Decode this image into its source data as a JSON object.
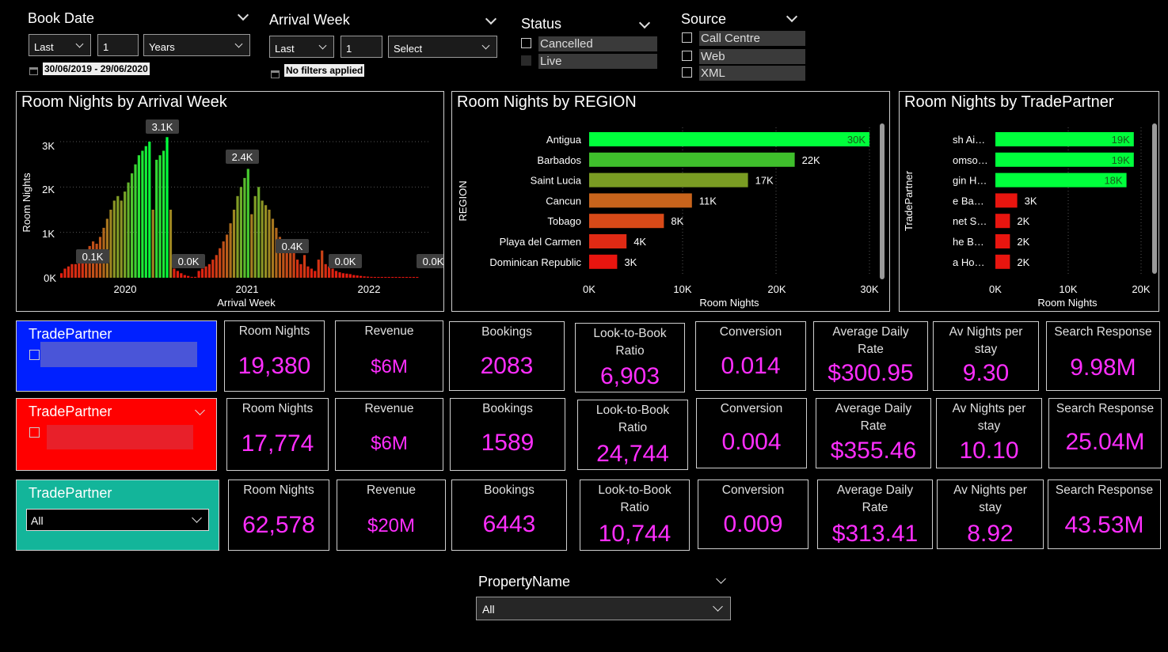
{
  "filters": {
    "book_date": {
      "title": "Book Date",
      "mode": "Last",
      "count": "1",
      "unit": "Years",
      "range": "30/06/2019 - 29/06/2020"
    },
    "arrival_week": {
      "title": "Arrival Week",
      "mode": "Last",
      "count": "1",
      "unit": "Select",
      "range": "No filters applied"
    },
    "status": {
      "title": "Status",
      "options": [
        "Cancelled",
        "Live"
      ]
    },
    "source": {
      "title": "Source",
      "options": [
        "Call Centre",
        "Web",
        "XML"
      ]
    },
    "property": {
      "title": "PropertyName",
      "value": "All"
    }
  },
  "charts": {
    "arrival": {
      "title": "Room Nights by Arrival Week",
      "xlabel": "Arrival Week",
      "ylabel": "Room Nights",
      "yticks": [
        "0K",
        "1K",
        "2K",
        "3K"
      ],
      "xticks": [
        "2020",
        "2021",
        "2022"
      ],
      "labels": [
        "3.1K",
        "2.4K",
        "0.1K",
        "0.0K",
        "0.4K",
        "0.0K",
        "0.0K"
      ]
    },
    "region": {
      "title": "Room Nights by REGION",
      "xlabel": "Room Nights",
      "ylabel": "REGION",
      "xticks": [
        "0K",
        "10K",
        "20K",
        "30K"
      ]
    },
    "tradepartner": {
      "title": "Room Nights by TradePartner",
      "xlabel": "Room Nights",
      "ylabel": "TradePartner",
      "xticks": [
        "0K",
        "10K",
        "20K"
      ]
    }
  },
  "chart_data": [
    {
      "type": "bar",
      "title": "Room Nights by Arrival Week",
      "xlabel": "Arrival Week",
      "ylabel": "Room Nights",
      "ylim": [
        0,
        3200
      ],
      "x_range": [
        "2019-07",
        "2022-09"
      ],
      "series": [
        {
          "name": "Room Nights",
          "values": [
            100,
            200,
            250,
            300,
            300,
            350,
            400,
            600,
            700,
            800,
            750,
            900,
            1100,
            1300,
            1500,
            1700,
            1800,
            1700,
            1900,
            2100,
            2300,
            2500,
            2700,
            2800,
            2900,
            3000,
            1500,
            2600,
            2700,
            2800,
            3100,
            1500,
            200,
            150,
            100,
            60,
            40,
            20,
            20,
            150,
            200,
            250,
            300,
            400,
            500,
            650,
            800,
            950,
            1200,
            1500,
            1800,
            2000,
            2200,
            2400,
            1400,
            1800,
            2000,
            1700,
            1600,
            1500,
            1300,
            1100,
            900,
            850,
            700,
            750,
            600,
            400,
            300,
            500,
            250,
            200,
            150,
            400,
            600,
            300,
            250,
            200,
            150,
            120,
            100,
            90,
            80,
            60,
            50,
            40,
            30,
            25,
            20,
            15,
            10,
            8,
            6,
            5,
            4,
            3,
            2,
            2,
            1,
            1,
            1,
            1,
            0,
            0,
            0
          ]
        }
      ],
      "data_labels": [
        "3.1K",
        "2.4K",
        "0.1K",
        "0.0K",
        "0.4K",
        "0.0K",
        "0.0K"
      ]
    },
    {
      "type": "bar",
      "title": "Room Nights by REGION",
      "xlabel": "Room Nights",
      "ylabel": "REGION",
      "xlim": [
        0,
        30000
      ],
      "categories": [
        "Antigua",
        "Barbados",
        "Saint Lucia",
        "Cancun",
        "Tobago",
        "Playa del Carmen",
        "Dominican Republic"
      ],
      "values": [
        30000,
        22000,
        17000,
        11000,
        8000,
        4000,
        3000
      ],
      "value_labels": [
        "30K",
        "22K",
        "17K",
        "11K",
        "8K",
        "4K",
        "3K"
      ],
      "colors": [
        "#00ff3c",
        "#3fbf2c",
        "#7a9c23",
        "#c8641c",
        "#d84a18",
        "#e02a14",
        "#e8150f"
      ]
    },
    {
      "type": "bar",
      "title": "Room Nights by TradePartner",
      "xlabel": "Room Nights",
      "ylabel": "TradePartner",
      "xlim": [
        0,
        20000
      ],
      "categories": [
        "sh Ai…",
        "omso…",
        "gin H…",
        "e Ba…",
        "net S…",
        "he B…",
        "a Ho…"
      ],
      "values": [
        19000,
        19000,
        18000,
        3000,
        2000,
        2000,
        2000
      ],
      "value_labels": [
        "19K",
        "19K",
        "18K",
        "3K",
        "2K",
        "2K",
        "2K"
      ],
      "colors": [
        "#00ff3c",
        "#00ff3c",
        "#00ff3c",
        "#e8150f",
        "#e8150f",
        "#e8150f",
        "#e8150f"
      ]
    }
  ],
  "kpi_rows": [
    {
      "partner": {
        "title": "TradePartner",
        "color": "#0020ff"
      },
      "items": [
        {
          "label": "Room Nights",
          "value": "19,380"
        },
        {
          "label": "Revenue",
          "value": "$6M"
        },
        {
          "label": "Bookings",
          "value": "2083"
        },
        {
          "label": "Look-to-Book Ratio",
          "value": "6,903"
        },
        {
          "label": "Conversion",
          "value": "0.014"
        },
        {
          "label": "Average Daily Rate",
          "value": "$300.95"
        },
        {
          "label": "Av Nights per stay",
          "value": "9.30"
        },
        {
          "label": "Search Response",
          "value": "9.98M"
        }
      ]
    },
    {
      "partner": {
        "title": "TradePartner",
        "color": "#ff0000"
      },
      "items": [
        {
          "label": "Room Nights",
          "value": "17,774"
        },
        {
          "label": "Revenue",
          "value": "$6M"
        },
        {
          "label": "Bookings",
          "value": "1589"
        },
        {
          "label": "Look-to-Book Ratio",
          "value": "24,744"
        },
        {
          "label": "Conversion",
          "value": "0.004"
        },
        {
          "label": "Average Daily Rate",
          "value": "$355.46"
        },
        {
          "label": "Av Nights per stay",
          "value": "10.10"
        },
        {
          "label": "Search Response",
          "value": "25.04M"
        }
      ]
    },
    {
      "partner": {
        "title": "TradePartner",
        "color": "#13b59a",
        "select_value": "All"
      },
      "items": [
        {
          "label": "Room Nights",
          "value": "62,578"
        },
        {
          "label": "Revenue",
          "value": "$20M"
        },
        {
          "label": "Bookings",
          "value": "6443"
        },
        {
          "label": "Look-to-Book Ratio",
          "value": "10,744"
        },
        {
          "label": "Conversion",
          "value": "0.009"
        },
        {
          "label": "Average Daily Rate",
          "value": "$313.41"
        },
        {
          "label": "Av Nights per stay",
          "value": "8.92"
        },
        {
          "label": "Search Response",
          "value": "43.53M"
        }
      ]
    }
  ],
  "colors": {
    "kpi_value": "#ff2eff",
    "panel_border": "#cfcfcf"
  }
}
